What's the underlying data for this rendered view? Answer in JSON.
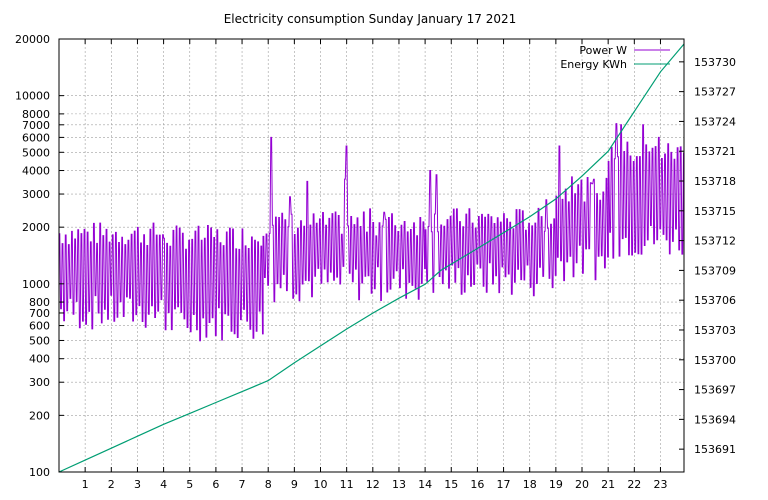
{
  "chart_data": {
    "type": "line",
    "title": "Electricity consumption Sunday January 17 2021",
    "x_ticks": [
      1,
      2,
      3,
      4,
      5,
      6,
      7,
      8,
      9,
      10,
      11,
      12,
      13,
      14,
      15,
      16,
      17,
      18,
      19,
      20,
      21,
      22,
      23
    ],
    "xlim": [
      0,
      23.9
    ],
    "y_left": {
      "scale": "log",
      "ylim": [
        100,
        20000
      ],
      "ticks": [
        100,
        200,
        300,
        400,
        500,
        600,
        700,
        800,
        1000,
        2000,
        3000,
        4000,
        5000,
        6000,
        7000,
        8000,
        10000,
        20000
      ]
    },
    "y_right": {
      "scale": "linear",
      "ylim": [
        153688.7,
        153732.3
      ],
      "ticks": [
        153691,
        153694,
        153697,
        153700,
        153703,
        153706,
        153709,
        153712,
        153715,
        153718,
        153721,
        153724,
        153727,
        153730
      ]
    },
    "grid": true,
    "legend_position": "top-right",
    "series": [
      {
        "name": "Power W",
        "axis": "left",
        "color": "#9400d3",
        "style": "oscillating",
        "segments": [
          {
            "x": [
              0,
              4
            ],
            "low": 700,
            "high": 1850,
            "spikes": []
          },
          {
            "x": [
              4,
              7.8
            ],
            "low": 620,
            "high": 1780,
            "spikes": []
          },
          {
            "x": [
              7.8,
              14
            ],
            "low": 1000,
            "high": 2100,
            "spikes": [
              [
                8.1,
                6000
              ],
              [
                8.8,
                2900
              ],
              [
                9.5,
                3500
              ],
              [
                11,
                5400
              ],
              [
                10.9,
                3600
              ],
              [
                11.9,
                2500
              ],
              [
                12.4,
                2400
              ]
            ]
          },
          {
            "x": [
              14,
              19
            ],
            "low": 1050,
            "high": 2200,
            "spikes": [
              [
                14.2,
                4000
              ],
              [
                14.4,
                3800
              ],
              [
                15.2,
                2500
              ],
              [
                18.6,
                2800
              ]
            ]
          },
          {
            "x": [
              19,
              21
            ],
            "low": 1300,
            "high": 3200,
            "spikes": [
              [
                19.1,
                5400
              ],
              [
                19.6,
                3700
              ],
              [
                20.4,
                3400
              ]
            ]
          },
          {
            "x": [
              21,
              23.9
            ],
            "low": 1700,
            "high": 5000,
            "spikes": [
              [
                21.3,
                7100
              ],
              [
                21.5,
                7000
              ],
              [
                22.3,
                7000
              ],
              [
                22.9,
                6000
              ]
            ]
          }
        ]
      },
      {
        "name": "Energy KWh",
        "axis": "right",
        "color": "#009e73",
        "points": [
          [
            0,
            153688.7
          ],
          [
            1,
            153689.9
          ],
          [
            2,
            153691.1
          ],
          [
            3,
            153692.3
          ],
          [
            4,
            153693.5
          ],
          [
            5,
            153694.6
          ],
          [
            6,
            153695.7
          ],
          [
            7,
            153696.8
          ],
          [
            8,
            153697.9
          ],
          [
            9,
            153699.7
          ],
          [
            10,
            153701.4
          ],
          [
            11,
            153703.1
          ],
          [
            12,
            153704.7
          ],
          [
            13,
            153706.2
          ],
          [
            14,
            153707.6
          ],
          [
            14.6,
            153709.0
          ],
          [
            16,
            153711.2
          ],
          [
            17,
            153712.8
          ],
          [
            18,
            153714.4
          ],
          [
            19,
            153716.2
          ],
          [
            20,
            153718.5
          ],
          [
            21,
            153721.0
          ],
          [
            22,
            153725.0
          ],
          [
            23,
            153729.0
          ],
          [
            23.9,
            153731.8
          ]
        ]
      }
    ]
  }
}
